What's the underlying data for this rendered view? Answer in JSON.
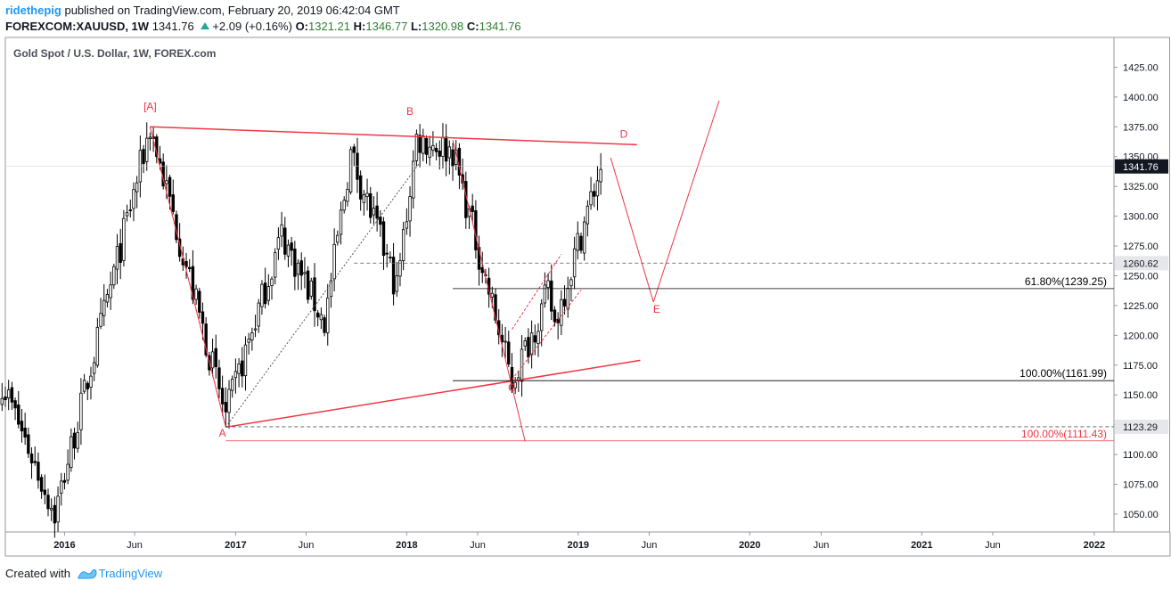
{
  "header": {
    "user": "ridethepig",
    "published": "published on TradingView.com, February 20, 2019 06:42:04 GMT",
    "symbol": "FOREXCOM:XAUUSD, 1W",
    "last": "1341.76",
    "change": "+2.09 (+0.16%)",
    "o_label": "O:",
    "o": "1321.21",
    "h_label": "H:",
    "h": "1346.77",
    "l_label": "L:",
    "l": "1320.98",
    "c_label": "C:",
    "c": "1341.76"
  },
  "footer": {
    "created_with": "Created with",
    "brand": "TradingView"
  },
  "colors": {
    "up": "#26a69a",
    "down": "#ef5350",
    "drawing": "#f23645",
    "candle": "#000000",
    "grid": "#e0e3eb"
  },
  "chart_data": {
    "type": "candlestick",
    "title": "Gold Spot / U.S. Dollar, 1W, FOREX.com",
    "x_ticks": [
      "2016",
      "Jun",
      "2017",
      "Jun",
      "2018",
      "Jun",
      "2019",
      "Jun",
      "2020",
      "Jun",
      "2021",
      "Jun",
      "2022"
    ],
    "y_ticks": [
      1050,
      1075,
      1100,
      1125,
      1150,
      1175,
      1200,
      1225,
      1250,
      1275,
      1300,
      1325,
      1350,
      1375,
      1400,
      1425
    ],
    "y_tick_labels": [
      "1050.00",
      "1075.00",
      "1100.00",
      "1125.00",
      "1150.00",
      "1175.00",
      "1200.00",
      "1225.00",
      "1250.00",
      "1275.00",
      "1300.00",
      "1325.00",
      "1350.00",
      "1375.00",
      "1400.00",
      "1425.00"
    ],
    "ylim": [
      1035,
      1450
    ],
    "xlim": [
      "2015-08-31",
      "2022-02-14"
    ],
    "price_marks": [
      {
        "value": 1341.76,
        "label": "1341.76",
        "style": "current"
      },
      {
        "value": 1260.62,
        "label": "1260.62",
        "style": "level"
      },
      {
        "value": 1123.29,
        "label": "1123.29",
        "style": "level"
      }
    ],
    "fib_levels": [
      {
        "label": "61.80%(1239.25)",
        "value": 1239.25,
        "color": "#000000"
      },
      {
        "label": "100.00%(1161.99)",
        "value": 1161.99,
        "color": "#000000"
      },
      {
        "label": "100.00%(1111.43)",
        "value": 1111.43,
        "color": "#f23645"
      }
    ],
    "wave_labels": [
      {
        "text": "[A]",
        "date": "2016-07-04",
        "value": 1389
      },
      {
        "text": "A",
        "date": "2016-12-05",
        "value": 1115
      },
      {
        "text": "B",
        "date": "2018-01-08",
        "value": 1385
      },
      {
        "text": "C",
        "date": "2018-08-13",
        "value": 1153
      },
      {
        "text": "D",
        "date": "2019-04-08",
        "value": 1366
      },
      {
        "text": "E",
        "date": "2019-06-17",
        "value": 1219
      }
    ],
    "anchors": {
      "a0": {
        "date": "2015-08-24",
        "value": 1161
      },
      "a1": {
        "date": "2015-12-14",
        "value": 1050
      },
      "a2": {
        "date": "2016-07-04",
        "value": 1375
      },
      "a3": {
        "date": "2016-12-12",
        "value": 1132
      },
      "a4": {
        "date": "2017-04-10",
        "value": 1285
      },
      "a5": {
        "date": "2017-07-10",
        "value": 1210
      },
      "a6": {
        "date": "2017-09-04",
        "value": 1352
      },
      "a7": {
        "date": "2017-12-11",
        "value": 1240
      },
      "a8": {
        "date": "2018-01-22",
        "value": 1365
      },
      "a9": {
        "date": "2018-04-09",
        "value": 1355
      },
      "a10": {
        "date": "2018-08-13",
        "value": 1161
      },
      "a11": {
        "date": "2018-10-29",
        "value": 1235
      },
      "a12": {
        "date": "2018-11-12",
        "value": 1210
      },
      "a13": {
        "date": "2019-02-18",
        "value": 1341.76
      }
    },
    "drawings": [
      {
        "kind": "line",
        "from": [
          "2016-07-04",
          1375
        ],
        "to": [
          "2019-05-06",
          1360
        ],
        "color": "#f23645",
        "width": 1.5
      },
      {
        "kind": "line",
        "from": [
          "2016-12-12",
          1123
        ],
        "to": [
          "2019-05-13",
          1179
        ],
        "color": "#f23645",
        "width": 1.5
      },
      {
        "kind": "line",
        "from": [
          "2016-07-04",
          1375
        ],
        "to": [
          "2016-12-12",
          1123
        ],
        "color": "#f23645",
        "width": 1
      },
      {
        "kind": "line",
        "from": [
          "2016-07-04",
          1375
        ],
        "to": [
          "2016-12-12",
          1123
        ],
        "color": "#f23645",
        "width": 1,
        "dash": "3,2"
      },
      {
        "kind": "line",
        "from": [
          "2016-12-12",
          1123
        ],
        "to": [
          "2018-01-29",
          1345
        ],
        "color": "#555555",
        "width": 1,
        "dash": "2,2"
      },
      {
        "kind": "line",
        "from": [
          "2018-04-09",
          1364
        ],
        "to": [
          "2018-09-10",
          1111
        ],
        "color": "#f23645",
        "width": 1
      },
      {
        "kind": "line",
        "from": [
          "2018-08-13",
          1205
        ],
        "to": [
          "2018-11-26",
          1268
        ],
        "color": "#f23645",
        "width": 1,
        "dash": "3,2"
      },
      {
        "kind": "line",
        "from": [
          "2018-08-13",
          1163
        ],
        "to": [
          "2019-01-07",
          1238
        ],
        "color": "#f23645",
        "width": 1,
        "dash": "3,2"
      },
      {
        "kind": "line",
        "from": [
          "2019-03-11",
          1349
        ],
        "to": [
          "2019-06-10",
          1228
        ],
        "color": "#f23645",
        "width": 1
      },
      {
        "kind": "line",
        "from": [
          "2019-06-10",
          1228
        ],
        "to": [
          "2019-10-28",
          1397
        ],
        "color": "#f23645",
        "width": 1
      },
      {
        "kind": "hline",
        "from": "2018-04-09",
        "value": 1239.25,
        "color": "#000000",
        "width": 0.8
      },
      {
        "kind": "hline",
        "from": "2018-04-09",
        "value": 1161.99,
        "color": "#000000",
        "width": 0.8
      },
      {
        "kind": "hline",
        "from": "2016-12-12",
        "value": 1111.43,
        "color": "#f23645",
        "width": 0.8
      },
      {
        "kind": "hline",
        "from": "2017-09-11",
        "value": 1260.62,
        "color": "#555555",
        "width": 0.8,
        "dash": "4,3"
      },
      {
        "kind": "hline",
        "from": "2016-12-12",
        "value": 1123.29,
        "color": "#555555",
        "width": 0.8,
        "dash": "4,3"
      },
      {
        "kind": "hline",
        "from": "2015-08-31",
        "value": 1341.76,
        "color": "#cccccc",
        "width": 0.6
      }
    ]
  }
}
